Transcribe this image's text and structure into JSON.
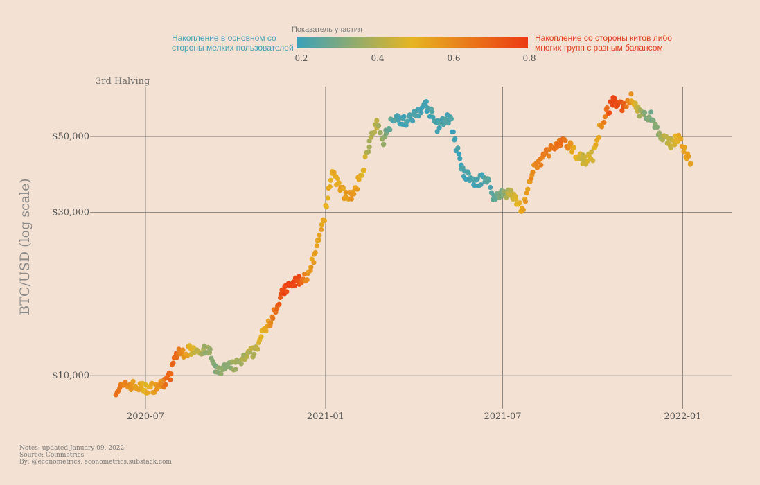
{
  "chart_data": {
    "type": "scatter",
    "ylabel": "BTC/USD (log scale)",
    "yscale": "log",
    "ylim": [
      8000,
      70000
    ],
    "y_ticks": [
      {
        "value": 10000,
        "label": "$10,000"
      },
      {
        "value": 30000,
        "label": "$30,000"
      },
      {
        "value": 50000,
        "label": "$50,000"
      }
    ],
    "xlim": [
      "2020-05-11",
      "2022-02-20"
    ],
    "x_ticks": [
      {
        "date": "2020-07-01",
        "label": "2020-07"
      },
      {
        "date": "2021-01-01",
        "label": "2021-01"
      },
      {
        "date": "2021-07-01",
        "label": "2021-07"
      },
      {
        "date": "2022-01-01",
        "label": "2022-01"
      }
    ],
    "annotation": {
      "date": "2020-05-11",
      "label": "3rd Halving"
    },
    "legend": {
      "title": "Показатель участия",
      "left_text": [
        "Накопление в основном со",
        "стороны мелких пользователей"
      ],
      "right_text": [
        "Накопление со стороны китов либо",
        "многих групп с разным балансом"
      ],
      "range": [
        0.2,
        0.8
      ],
      "ticks": [
        "0.2",
        "0.4",
        "0.6",
        "0.8"
      ],
      "colors": {
        "low": "#3aa1ba",
        "mid": "#e6b522",
        "high": "#ec3a12"
      }
    },
    "anchor_points": [
      {
        "date": "2020-06-01",
        "price": 9100,
        "score": 0.66
      },
      {
        "date": "2020-06-15",
        "price": 9400,
        "score": 0.6
      },
      {
        "date": "2020-07-01",
        "price": 9150,
        "score": 0.5
      },
      {
        "date": "2020-07-15",
        "price": 9300,
        "score": 0.58
      },
      {
        "date": "2020-07-26",
        "price": 9900,
        "score": 0.7
      },
      {
        "date": "2020-08-01",
        "price": 11500,
        "score": 0.68
      },
      {
        "date": "2020-08-20",
        "price": 12000,
        "score": 0.45
      },
      {
        "date": "2020-09-05",
        "price": 11700,
        "score": 0.35
      },
      {
        "date": "2020-09-10",
        "price": 10300,
        "score": 0.32
      },
      {
        "date": "2020-10-01",
        "price": 10700,
        "score": 0.38
      },
      {
        "date": "2020-10-20",
        "price": 11800,
        "score": 0.42
      },
      {
        "date": "2020-11-05",
        "price": 14500,
        "score": 0.58
      },
      {
        "date": "2020-11-20",
        "price": 17800,
        "score": 0.78
      },
      {
        "date": "2020-12-05",
        "price": 19000,
        "score": 0.76
      },
      {
        "date": "2020-12-15",
        "price": 19600,
        "score": 0.56
      },
      {
        "date": "2020-12-25",
        "price": 24500,
        "score": 0.54
      },
      {
        "date": "2021-01-01",
        "price": 30500,
        "score": 0.52
      },
      {
        "date": "2021-01-08",
        "price": 39500,
        "score": 0.52
      },
      {
        "date": "2021-01-20",
        "price": 34000,
        "score": 0.55
      },
      {
        "date": "2021-01-30",
        "price": 33500,
        "score": 0.58
      },
      {
        "date": "2021-02-08",
        "price": 40000,
        "score": 0.5
      },
      {
        "date": "2021-02-15",
        "price": 48000,
        "score": 0.4
      },
      {
        "date": "2021-02-22",
        "price": 54000,
        "score": 0.42
      },
      {
        "date": "2021-03-01",
        "price": 49000,
        "score": 0.34
      },
      {
        "date": "2021-03-12",
        "price": 57500,
        "score": 0.24
      },
      {
        "date": "2021-03-25",
        "price": 55000,
        "score": 0.22
      },
      {
        "date": "2021-04-14",
        "price": 62000,
        "score": 0.22
      },
      {
        "date": "2021-04-25",
        "price": 53500,
        "score": 0.24
      },
      {
        "date": "2021-05-08",
        "price": 57000,
        "score": 0.22
      },
      {
        "date": "2021-05-20",
        "price": 40000,
        "score": 0.22
      },
      {
        "date": "2021-06-01",
        "price": 36500,
        "score": 0.22
      },
      {
        "date": "2021-06-15",
        "price": 38000,
        "score": 0.24
      },
      {
        "date": "2021-06-22",
        "price": 33000,
        "score": 0.25
      },
      {
        "date": "2021-07-01",
        "price": 34500,
        "score": 0.34
      },
      {
        "date": "2021-07-10",
        "price": 33800,
        "score": 0.45
      },
      {
        "date": "2021-07-21",
        "price": 30500,
        "score": 0.54
      },
      {
        "date": "2021-08-01",
        "price": 39500,
        "score": 0.6
      },
      {
        "date": "2021-08-15",
        "price": 45000,
        "score": 0.64
      },
      {
        "date": "2021-09-01",
        "price": 48000,
        "score": 0.68
      },
      {
        "date": "2021-09-10",
        "price": 46000,
        "score": 0.55
      },
      {
        "date": "2021-09-22",
        "price": 42500,
        "score": 0.44
      },
      {
        "date": "2021-10-01",
        "price": 44000,
        "score": 0.48
      },
      {
        "date": "2021-10-10",
        "price": 55000,
        "score": 0.58
      },
      {
        "date": "2021-10-21",
        "price": 63000,
        "score": 0.78
      },
      {
        "date": "2021-11-01",
        "price": 61500,
        "score": 0.74
      },
      {
        "date": "2021-11-10",
        "price": 65000,
        "score": 0.56
      },
      {
        "date": "2021-11-20",
        "price": 57500,
        "score": 0.36
      },
      {
        "date": "2021-11-30",
        "price": 57000,
        "score": 0.3
      },
      {
        "date": "2021-12-10",
        "price": 49000,
        "score": 0.4
      },
      {
        "date": "2021-12-20",
        "price": 48000,
        "score": 0.44
      },
      {
        "date": "2021-12-28",
        "price": 50000,
        "score": 0.52
      },
      {
        "date": "2022-01-05",
        "price": 43500,
        "score": 0.56
      },
      {
        "date": "2022-01-09",
        "price": 41800,
        "score": 0.55
      }
    ]
  },
  "notes": {
    "line1": "Notes: updated January 09, 2022",
    "line2": "Source: Coinmetrics",
    "line3": "By: @econometrics, econometrics.substack.com"
  }
}
